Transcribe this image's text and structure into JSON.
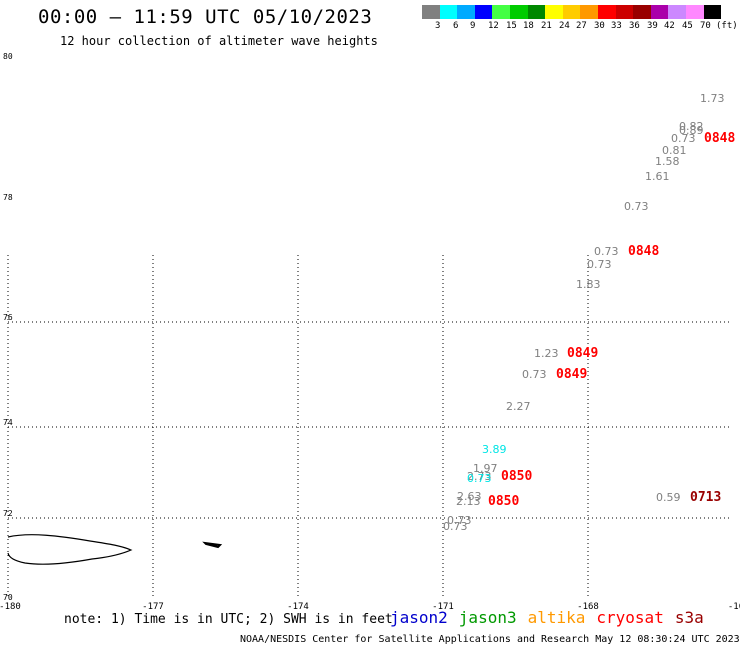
{
  "header": {
    "title": "00:00 – 11:59 UTC 05/10/2023",
    "subtitle": "12 hour collection of altimeter wave heights"
  },
  "legend": {
    "levels": [
      "3",
      "6",
      "9",
      "12",
      "15",
      "18",
      "21",
      "24",
      "27",
      "30",
      "33",
      "36",
      "39",
      "42",
      "45",
      "70",
      "(ft)"
    ],
    "colors": [
      "#808080",
      "#00ffff",
      "#00aaff",
      "#0000ff",
      "#44ff44",
      "#00cc00",
      "#008800",
      "#ffff00",
      "#ffcc00",
      "#ff9900",
      "#ff0000",
      "#cc0000",
      "#990000",
      "#aa00aa",
      "#cc88ff",
      "#ff88ff",
      "#000000"
    ]
  },
  "map": {
    "lon_labels": [
      "-180",
      "-177",
      "-174",
      "-171",
      "-168",
      "-16"
    ],
    "lat_labels": [
      "80",
      "78",
      "76",
      "74",
      "72",
      "70"
    ],
    "measurements": [
      {
        "value": "1.73",
        "color": "#808080"
      },
      {
        "value": "0.82",
        "color": "#808080"
      },
      {
        "value": "0.89",
        "color": "#808080"
      },
      {
        "value": "0.73",
        "color": "#808080"
      },
      {
        "value": "0.81",
        "color": "#808080"
      },
      {
        "value": "1.58",
        "color": "#808080"
      },
      {
        "value": "1.61",
        "color": "#808080"
      },
      {
        "value": "0.73",
        "color": "#808080"
      },
      {
        "value": "0.73",
        "color": "#808080"
      },
      {
        "value": "0.73",
        "color": "#808080"
      },
      {
        "value": "1.83",
        "color": "#808080"
      },
      {
        "value": "1.23",
        "color": "#808080"
      },
      {
        "value": "0.73",
        "color": "#808080"
      },
      {
        "value": "2.27",
        "color": "#808080"
      },
      {
        "value": "3.89",
        "color": "#00e5e5"
      },
      {
        "value": "1.97",
        "color": "#808080"
      },
      {
        "value": "2.73",
        "color": "#808080"
      },
      {
        "value": "0.73",
        "color": "#00e5e5"
      },
      {
        "value": "2.63",
        "color": "#808080"
      },
      {
        "value": "2.13",
        "color": "#808080"
      },
      {
        "value": "0.73",
        "color": "#808080"
      },
      {
        "value": "0.73",
        "color": "#808080"
      },
      {
        "value": "0.59",
        "color": "#808080"
      }
    ],
    "times": [
      {
        "value": "0848",
        "color": "#ff0000"
      },
      {
        "value": "0848",
        "color": "#ff0000"
      },
      {
        "value": "0849",
        "color": "#ff0000"
      },
      {
        "value": "0849",
        "color": "#ff0000"
      },
      {
        "value": "0850",
        "color": "#ff0000"
      },
      {
        "value": "0850",
        "color": "#ff0000"
      },
      {
        "value": "0713",
        "color": "#990000"
      }
    ]
  },
  "footer": {
    "note": "note: 1) Time is in UTC; 2) SWH is in feet",
    "satellites": [
      {
        "name": "jason2",
        "color": "#0000cc"
      },
      {
        "name": "jason3",
        "color": "#009900"
      },
      {
        "name": "altika",
        "color": "#ff9900"
      },
      {
        "name": "cryosat",
        "color": "#ff0000"
      },
      {
        "name": "s3a",
        "color": "#990000"
      }
    ],
    "credit": "NOAA/NESDIS Center for Satellite Applications and Research     May 12 08:30:24 UTC 2023"
  }
}
